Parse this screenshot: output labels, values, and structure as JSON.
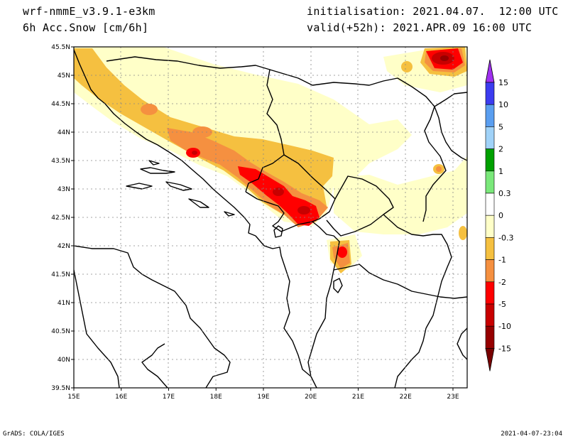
{
  "header": {
    "model": "wrf-nmmE_v3.9.1-e3km",
    "field": "6h Acc.Snow [cm/6h]",
    "initialisation": "initialisation: 2021.04.07.  12:00 UTC",
    "valid": "valid(+52h): 2021.APR.09 16:00 UTC"
  },
  "map": {
    "lon_range": [
      15,
      23.3
    ],
    "lat_range": [
      39.5,
      45.5
    ],
    "lon_ticks": [
      "15E",
      "16E",
      "17E",
      "18E",
      "19E",
      "20E",
      "21E",
      "22E",
      "23E"
    ],
    "lat_ticks": [
      "39.5N",
      "40N",
      "40.5N",
      "41N",
      "41.5N",
      "42N",
      "42.5N",
      "43N",
      "43.5N",
      "44N",
      "44.5N",
      "45N",
      "45.5N"
    ],
    "grid": true
  },
  "colorbar": {
    "labels": [
      "15",
      "10",
      "5",
      "2",
      "1",
      "0.3",
      "0",
      "-0.3",
      "-1",
      "-2",
      "-5",
      "-10",
      "-15"
    ],
    "colors": [
      "#a030f0",
      "#3c3cf0",
      "#5a9ef0",
      "#a0d2f8",
      "#00a000",
      "#7ae87a",
      "#ffffff",
      "#ffffc8",
      "#f5c040",
      "#f59040",
      "#ff0000",
      "#c80000",
      "#960000",
      "#780000"
    ]
  },
  "footer": {
    "left": "GrADS: COLA/IGES",
    "right": "2021-04-07-23:04"
  }
}
